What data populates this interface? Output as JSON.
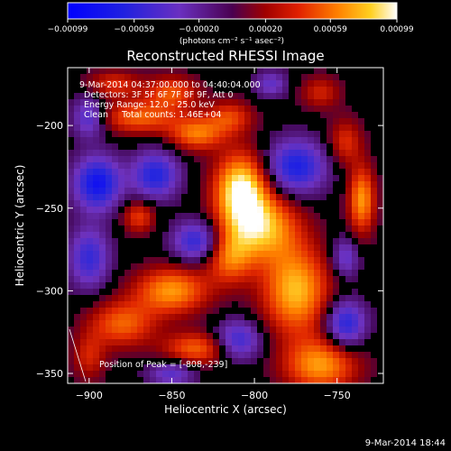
{
  "chart_data": {
    "type": "heatmap",
    "title": "Reconstructed RHESSI Image",
    "xlabel": "Heliocentric X (arcsec)",
    "ylabel": "Heliocentric Y (arcsec)",
    "xlim": [
      -913,
      -722
    ],
    "ylim": [
      -356,
      -165
    ],
    "x_ticks": [
      -900,
      -850,
      -800,
      -750
    ],
    "x_tick_labels": [
      "−900",
      "−850",
      "−800",
      "−750"
    ],
    "y_ticks": [
      -200,
      -250,
      -300,
      -350
    ],
    "y_tick_labels": [
      "−200",
      "−250",
      "−300",
      "−350"
    ],
    "colorbar": {
      "ticks": [
        -0.00099,
        -0.00059,
        -0.0002,
        0.0002,
        0.00059,
        0.00099
      ],
      "tick_labels": [
        "−0.00099",
        "−0.00059",
        "−0.00020",
        "0.00020",
        "0.00059",
        "0.00099"
      ],
      "unit_label": "(photons cm⁻² s⁻¹ asec⁻²)",
      "range": [
        -0.00099,
        0.00099
      ]
    },
    "annotations": [
      "9-Mar-2014 04:37:00.000 to 04:40:04.000",
      "Detectors: 3F 5F 6F 7F 8F 9F, Att 0",
      "Energy Range: 12.0 - 25.0 keV",
      "Clean     Total counts: 1.46E+04",
      "Position of Peak = [-808,-239]"
    ],
    "peak": {
      "x": -808,
      "y": -239
    },
    "grid": false
  },
  "footer_timestamp": "9-Mar-2014 18:44"
}
